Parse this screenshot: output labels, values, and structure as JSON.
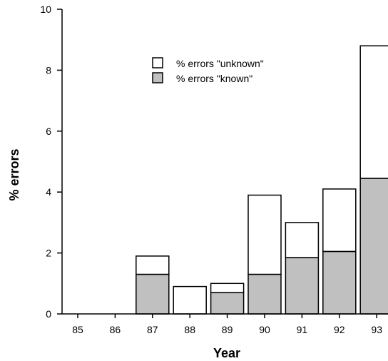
{
  "chart_data": {
    "type": "bar",
    "stacked": true,
    "categories": [
      "85",
      "86",
      "87",
      "88",
      "89",
      "90",
      "91",
      "92",
      "93"
    ],
    "series": [
      {
        "name": "% errors \"known\"",
        "values": [
          0,
          0,
          1.3,
          0,
          0.7,
          1.3,
          1.85,
          2.05,
          4.45
        ],
        "color": "#c0c0c0"
      },
      {
        "name": "% errors \"unknown\"",
        "values": [
          0,
          0,
          0.6,
          0.9,
          0.3,
          2.6,
          1.15,
          2.05,
          4.35
        ],
        "color": "#ffffff"
      }
    ],
    "title": "",
    "xlabel": "Year",
    "ylabel": "% errors",
    "ylim": [
      0,
      10
    ],
    "yticks": [
      "0",
      "2",
      "4",
      "6",
      "8",
      "10"
    ],
    "legend_position": "top-center",
    "grid": false
  }
}
